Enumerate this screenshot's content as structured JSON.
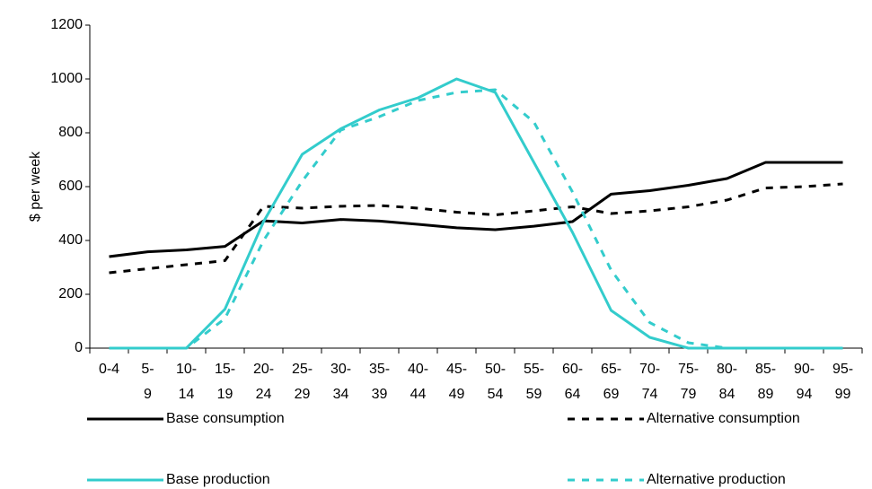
{
  "chart_data": {
    "type": "line",
    "y_label": "$ per week",
    "categories": [
      "0-4",
      "5-9",
      "10-14",
      "15-19",
      "20-24",
      "25-29",
      "30-34",
      "35-39",
      "40-44",
      "45-49",
      "50-54",
      "55-59",
      "60-64",
      "65-69",
      "70-74",
      "75-79",
      "80-84",
      "85-89",
      "90-94",
      "95-99"
    ],
    "series": [
      {
        "name": "Base consumption",
        "color": "#000000",
        "dashed": false,
        "values": [
          340,
          358,
          365,
          378,
          473,
          465,
          478,
          472,
          460,
          447,
          440,
          453,
          470,
          572,
          585,
          605,
          630,
          690,
          690,
          690
        ]
      },
      {
        "name": "Alternative consumption",
        "color": "#000000",
        "dashed": true,
        "values": [
          280,
          295,
          310,
          325,
          527,
          520,
          527,
          530,
          520,
          505,
          495,
          510,
          525,
          500,
          510,
          525,
          550,
          595,
          600,
          610
        ]
      },
      {
        "name": "Base production",
        "color": "#33cccc",
        "dashed": false,
        "values": [
          0,
          0,
          0,
          145,
          470,
          720,
          815,
          885,
          930,
          1000,
          950,
          690,
          430,
          140,
          40,
          0,
          0,
          0,
          0,
          0
        ]
      },
      {
        "name": "Alternative production",
        "color": "#33cccc",
        "dashed": true,
        "values": [
          0,
          0,
          0,
          110,
          400,
          620,
          810,
          860,
          920,
          950,
          960,
          840,
          580,
          290,
          95,
          20,
          0,
          0,
          0,
          0
        ]
      }
    ],
    "ylim": [
      0,
      1200
    ],
    "yticks": [
      0,
      200,
      400,
      600,
      800,
      1000,
      1200
    ],
    "grid": false
  }
}
